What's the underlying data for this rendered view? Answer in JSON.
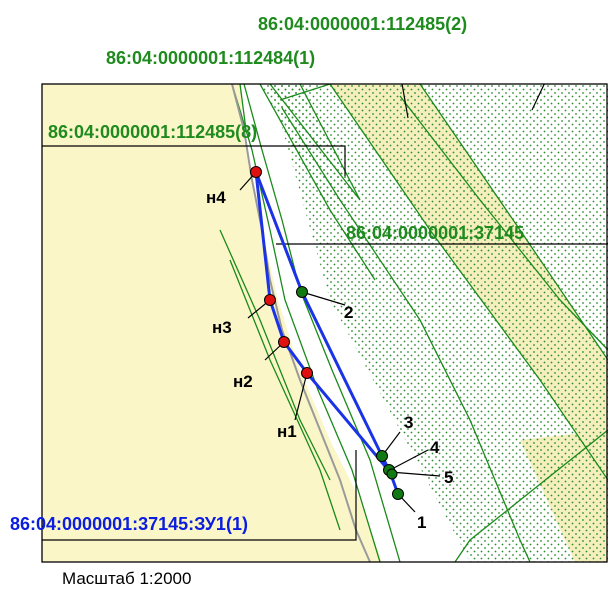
{
  "colors": {
    "parcel_fill": "#fbf6c8",
    "stripe_fill": "#f4efbc",
    "boundary_green": "#1a8a1a",
    "label_green": "#1f8b1f",
    "label_blue": "#0a1de0",
    "new_boundary": "#1a33e6",
    "point_new": "#e01010",
    "point_existing": "#127a12",
    "creek": "#9a9a9a",
    "dots": "#2e8b2e"
  },
  "parcels": [
    {
      "cadastral": "86:04:0000001:112485(2)",
      "color": "green"
    },
    {
      "cadastral": "86:04:0000001:112484(1)",
      "color": "green"
    },
    {
      "cadastral": "86:04:0000001:112485(8)",
      "color": "green"
    },
    {
      "cadastral": "86:04:0000001:37145",
      "color": "green"
    },
    {
      "cadastral": "86:04:0000001:37145:ЗУ1(1)",
      "color": "blue"
    }
  ],
  "points": [
    {
      "label": "н4",
      "kind": "new"
    },
    {
      "label": "н3",
      "kind": "new"
    },
    {
      "label": "н2",
      "kind": "new"
    },
    {
      "label": "н1",
      "kind": "new"
    },
    {
      "label": "2",
      "kind": "existing"
    },
    {
      "label": "3",
      "kind": "existing"
    },
    {
      "label": "4",
      "kind": "existing"
    },
    {
      "label": "5",
      "kind": "existing"
    },
    {
      "label": "1",
      "kind": "existing"
    }
  ],
  "scale": "Масштаб 1:2000"
}
